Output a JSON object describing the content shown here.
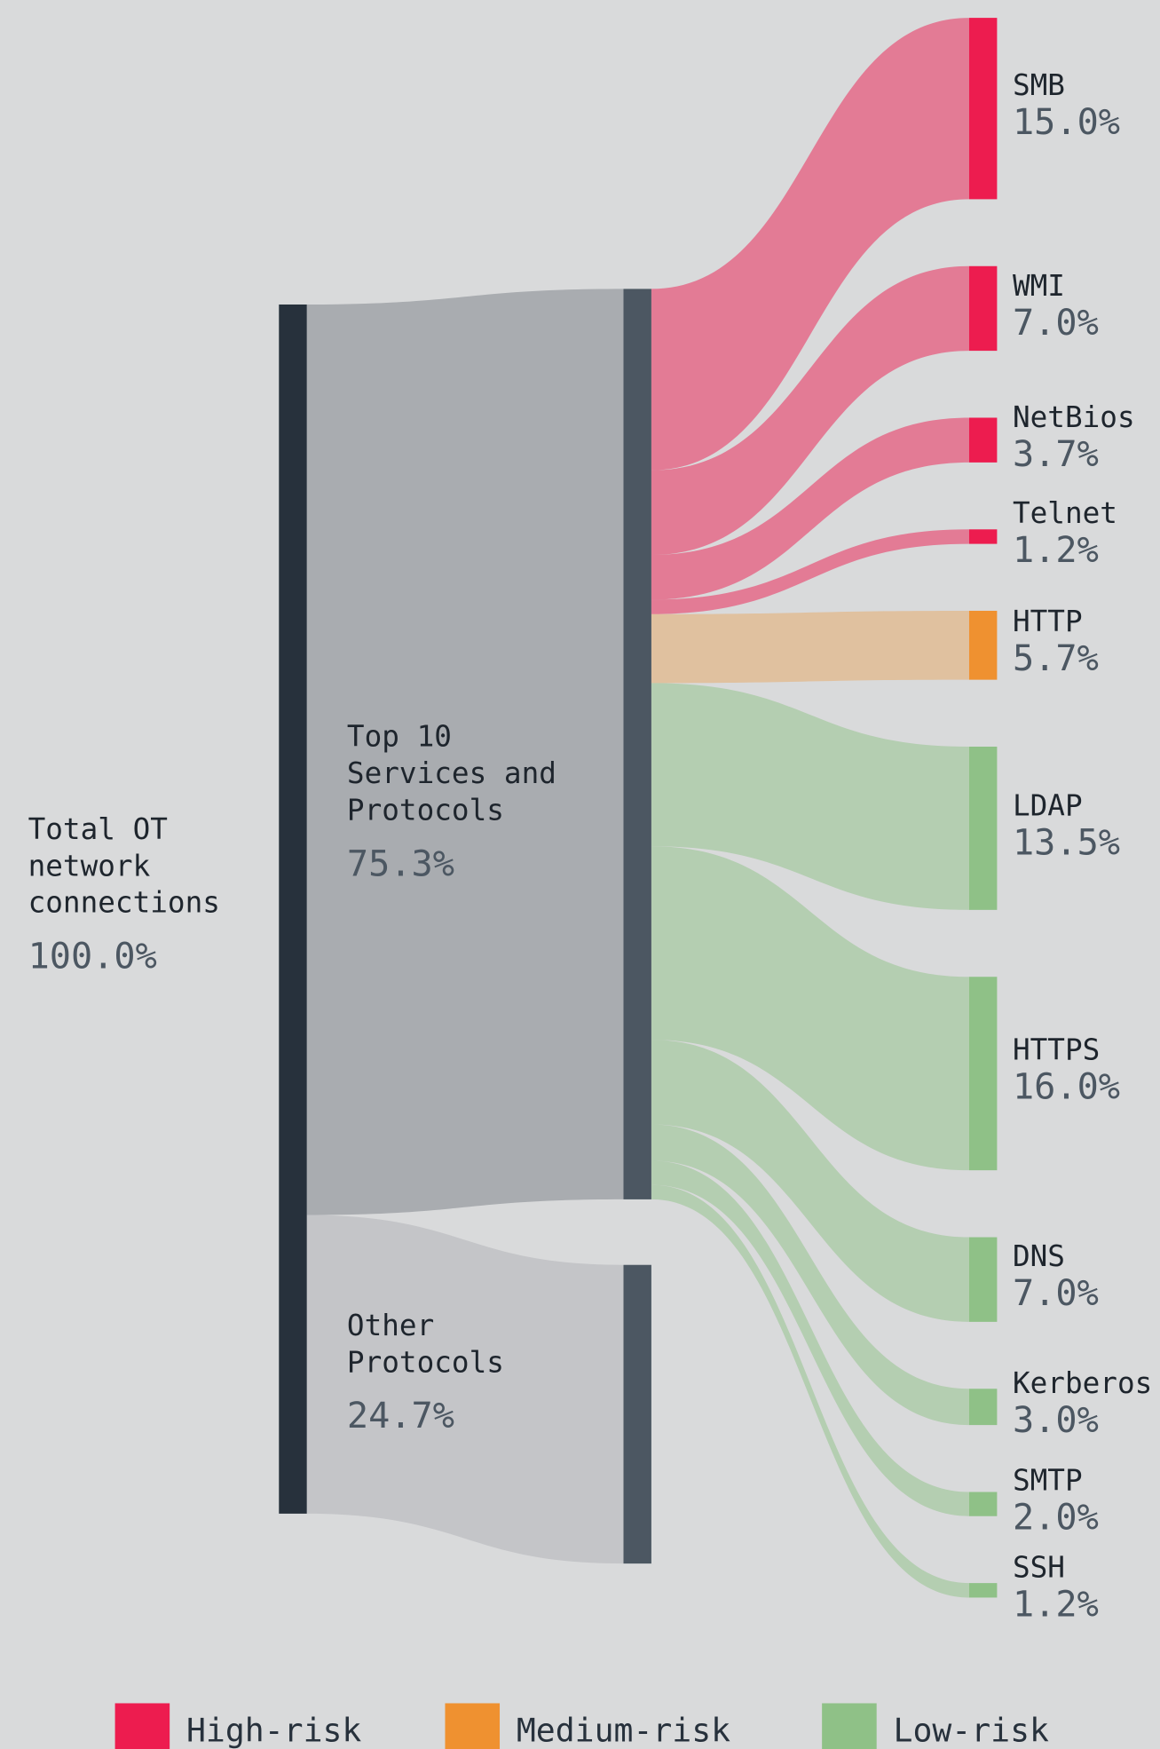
{
  "chart_data": {
    "type": "sankey",
    "root": {
      "label": "Total OT network connections",
      "value": 100,
      "value_label": "100.0%"
    },
    "groups": [
      {
        "label": "Top 10 Services and Protocols",
        "value": 75.3,
        "value_label": "75.3%",
        "color": "#a9acb0"
      },
      {
        "label": "Other Protocols",
        "value": 24.7,
        "value_label": "24.7%",
        "color": "#c4c5c8"
      }
    ],
    "categories": [
      "SMB",
      "WMI",
      "NetBios",
      "Telnet",
      "HTTP",
      "LDAP",
      "HTTPS",
      "DNS",
      "Kerberos",
      "SMTP",
      "SSH"
    ],
    "values": [
      15,
      7,
      3.7,
      1.2,
      5.7,
      13.5,
      16,
      7,
      3,
      2,
      1.2
    ],
    "value_labels": [
      "15.0%",
      "7.0%",
      "3.7%",
      "1.2%",
      "5.7%",
      "13.5%",
      "16.0%",
      "7.0%",
      "3.0%",
      "2.0%",
      "1.2%"
    ],
    "risk": [
      0,
      0,
      0,
      0,
      1,
      2,
      2,
      2,
      2,
      2,
      2
    ],
    "series": [
      {
        "name": "High-risk",
        "color": "#ed1c4f"
      },
      {
        "name": "Medium-risk",
        "color": "#ef9130"
      },
      {
        "name": "Low-risk",
        "color": "#8fc187"
      }
    ]
  }
}
